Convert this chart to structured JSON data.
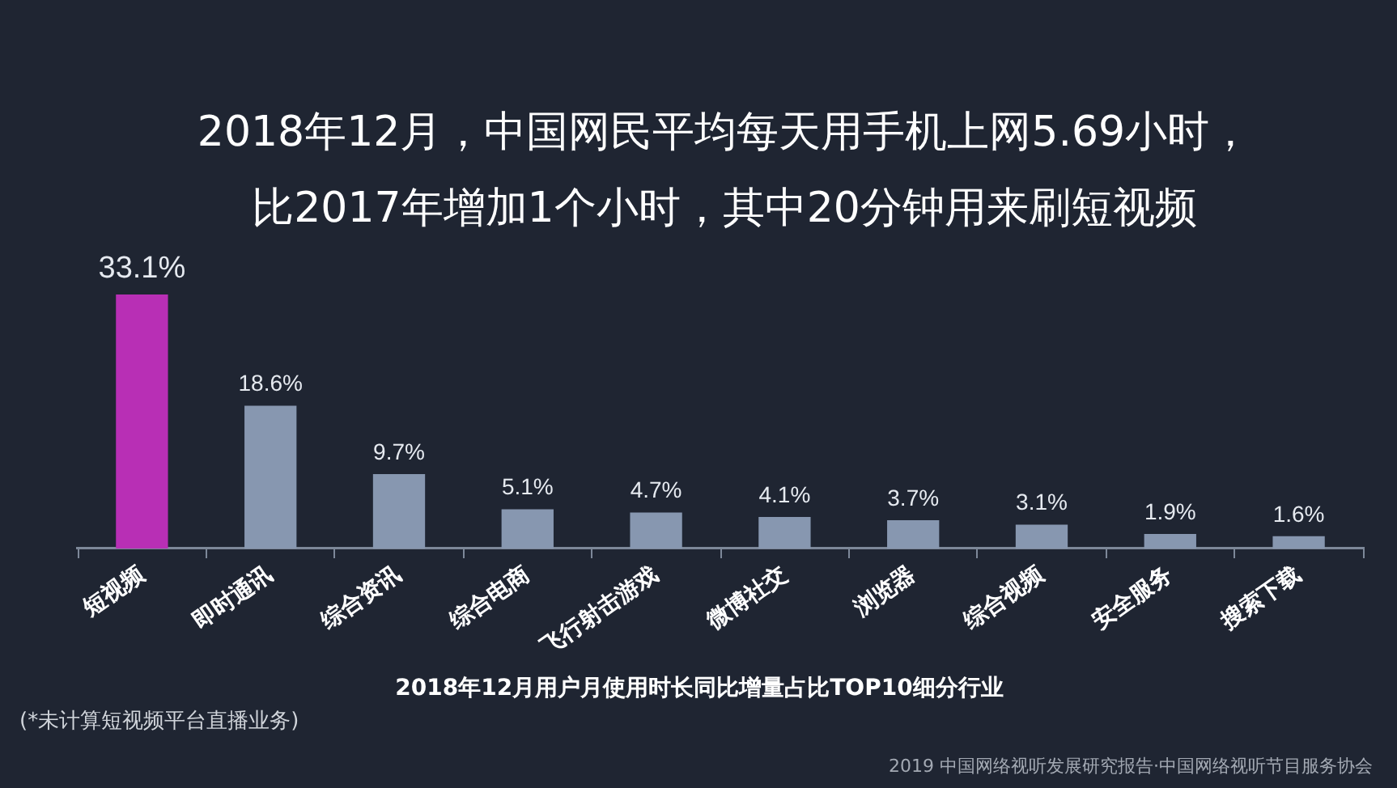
{
  "chart_data": {
    "type": "bar",
    "title": "2018年12月，中国网民平均每天用手机上网5.69小时，比2017年增加1个小时，其中20分钟用来刷短视频",
    "xlabel": "2018年12月用户月使用时长同比增量占比TOP10细分行业",
    "categories": [
      "短视频",
      "即时通讯",
      "综合资讯",
      "综合电商",
      "飞行射击游戏",
      "微博社交",
      "浏览器",
      "综合视频",
      "安全服务",
      "搜索下载"
    ],
    "values": [
      33.1,
      18.6,
      9.7,
      5.1,
      4.7,
      4.1,
      3.7,
      3.1,
      1.9,
      1.6
    ],
    "value_labels": [
      "33.1%",
      "18.6%",
      "9.7%",
      "5.1%",
      "4.7%",
      "4.1%",
      "3.7%",
      "3.1%",
      "1.9%",
      "1.6%"
    ],
    "colors": [
      "#b82fb5",
      "#8797b0",
      "#8797b0",
      "#8797b0",
      "#8797b0",
      "#8797b0",
      "#8797b0",
      "#8797b0",
      "#8797b0",
      "#8797b0"
    ],
    "annotations": [
      "(*未计算短视频平台直播业务)",
      "2019 中国网络视听发展研究报告·中国网络视听节目服务协会"
    ],
    "tick_labels": "x",
    "grid": false
  }
}
